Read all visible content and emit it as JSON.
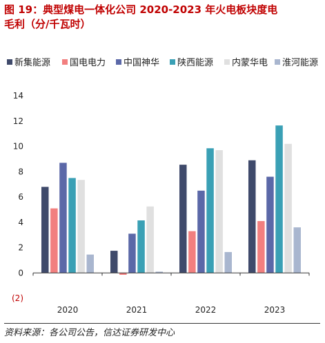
{
  "title": {
    "line1": "图 19：典型煤电一体化公司 2020-2023 年火电板块度电",
    "line2": "毛利（分/千瓦时）"
  },
  "source_note": "资料来源：各公司公告，信达证券研发中心",
  "chart_data": {
    "type": "bar",
    "title": "",
    "xlabel": "",
    "ylabel": "",
    "categories": [
      "2020",
      "2021",
      "2022",
      "2023"
    ],
    "ylim": [
      -2,
      14
    ],
    "yticks": [
      -2,
      0,
      2,
      4,
      6,
      8,
      10,
      12,
      14
    ],
    "ytick_labels": [
      "(2)",
      "0",
      "2",
      "4",
      "6",
      "8",
      "10",
      "12",
      "14"
    ],
    "grid": false,
    "legend_position": "top",
    "series": [
      {
        "name": "新集能源",
        "color": "#3f4a6b",
        "values": [
          6.8,
          1.75,
          8.55,
          8.9
        ]
      },
      {
        "name": "国电电力",
        "color": "#f27f7f",
        "values": [
          5.1,
          -0.15,
          3.3,
          4.1
        ]
      },
      {
        "name": "中国神华",
        "color": "#5b68a8",
        "values": [
          8.7,
          3.1,
          6.5,
          7.6
        ]
      },
      {
        "name": "陕西能源",
        "color": "#3aa0b5",
        "values": [
          7.5,
          4.15,
          9.85,
          11.65
        ]
      },
      {
        "name": "内蒙华电",
        "color": "#e0e0e0",
        "values": [
          7.35,
          5.25,
          9.7,
          10.2
        ]
      },
      {
        "name": "淮河能源",
        "color": "#a9b6cf",
        "values": [
          1.45,
          0.1,
          1.65,
          3.6
        ]
      }
    ]
  }
}
